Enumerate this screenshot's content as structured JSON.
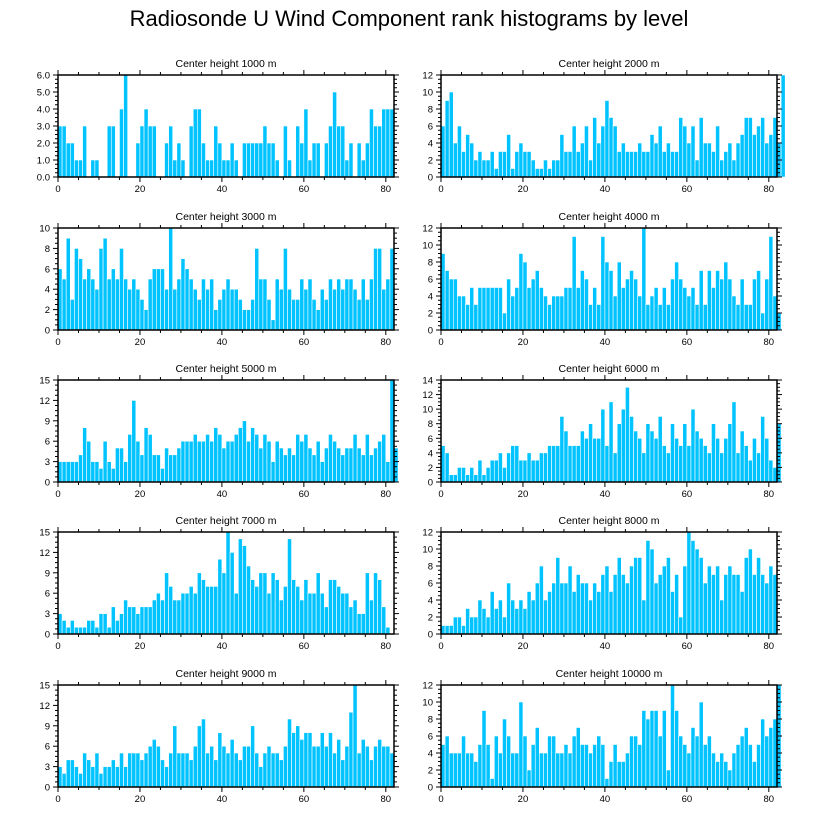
{
  "figure_title": "Radiosonde U Wind Component rank histograms by level",
  "colors": {
    "bar_fill": "#00c3ff",
    "bar_stroke": "#ffffff",
    "axis": "#000000"
  },
  "chart_data": [
    {
      "type": "bar",
      "title": "Center height 1000 m",
      "xlim": [
        0,
        82
      ],
      "xticks": [
        0,
        20,
        40,
        60,
        80
      ],
      "ylim": [
        0,
        6
      ],
      "yticks": [
        "0.0",
        "1.0",
        "2.0",
        "3.0",
        "4.0",
        "5.0",
        "6.0"
      ],
      "ytick_values": [
        0,
        1,
        2,
        3,
        4,
        5,
        6
      ],
      "values": [
        3,
        3,
        2,
        2,
        1,
        1,
        3,
        0,
        1,
        1,
        0,
        0,
        3,
        3,
        0,
        4,
        6,
        0,
        0,
        2,
        3,
        4,
        3,
        3,
        0,
        0,
        2,
        3,
        1,
        2,
        1,
        0,
        3,
        4,
        4,
        2,
        1,
        1,
        3,
        2,
        1,
        1,
        2,
        1,
        0,
        2,
        2,
        2,
        2,
        2,
        3,
        2,
        2,
        1,
        0,
        3,
        1,
        0,
        3,
        2,
        4,
        1,
        2,
        2,
        0,
        2,
        3,
        5,
        3,
        3,
        1,
        2,
        0,
        2,
        1,
        2,
        4,
        3,
        3,
        4,
        4,
        4
      ]
    },
    {
      "type": "bar",
      "title": "Center height 2000 m",
      "xlim": [
        0,
        82
      ],
      "xticks": [
        0,
        20,
        40,
        60,
        80
      ],
      "ylim": [
        0,
        12
      ],
      "yticks": [
        "0",
        "2",
        "4",
        "6",
        "8",
        "10",
        "12"
      ],
      "ytick_values": [
        0,
        2,
        4,
        6,
        8,
        10,
        12
      ],
      "values": [
        6,
        9,
        10,
        4,
        6,
        3,
        5,
        4,
        2,
        3,
        2,
        2,
        3,
        1,
        3,
        3,
        5,
        1,
        3,
        4,
        3,
        3,
        2,
        1,
        1,
        2,
        1,
        2,
        2,
        5,
        3,
        3,
        6,
        3,
        4,
        6,
        2,
        7,
        4,
        6,
        9,
        7,
        6,
        3,
        4,
        3,
        3,
        3,
        4,
        3,
        3,
        5,
        4,
        6,
        3,
        4,
        3,
        3,
        7,
        6,
        4,
        6,
        2,
        7,
        4,
        4,
        3,
        6,
        2,
        3,
        4,
        2,
        4,
        5,
        7,
        7,
        5,
        6,
        7,
        4,
        5,
        7,
        4,
        12
      ]
    },
    {
      "type": "bar",
      "title": "Center height 3000 m",
      "xlim": [
        0,
        82
      ],
      "xticks": [
        0,
        20,
        40,
        60,
        80
      ],
      "ylim": [
        0,
        10
      ],
      "yticks": [
        "0",
        "2",
        "4",
        "6",
        "8",
        "10"
      ],
      "ytick_values": [
        0,
        2,
        4,
        6,
        8,
        10
      ],
      "values": [
        6,
        5,
        9,
        3,
        8,
        7,
        5,
        6,
        5,
        4,
        8,
        9,
        5,
        6,
        5,
        8,
        5,
        4,
        5,
        4,
        3,
        2,
        5,
        6,
        6,
        6,
        4,
        10,
        4,
        5,
        7,
        6,
        5,
        4,
        3,
        5,
        4,
        5,
        2,
        3,
        4,
        5,
        4,
        4,
        3,
        2,
        2,
        3,
        8,
        5,
        5,
        3,
        1,
        5,
        4,
        8,
        4,
        3,
        3,
        5,
        4,
        5,
        3,
        2,
        4,
        3,
        5,
        4,
        5,
        4,
        5,
        5,
        4,
        3,
        5,
        3,
        5,
        8,
        8,
        4,
        5,
        8
      ]
    },
    {
      "type": "bar",
      "title": "Center height 4000 m",
      "xlim": [
        0,
        82
      ],
      "xticks": [
        0,
        20,
        40,
        60,
        80
      ],
      "ylim": [
        0,
        12
      ],
      "yticks": [
        "0",
        "2",
        "4",
        "6",
        "8",
        "10",
        "12"
      ],
      "ytick_values": [
        0,
        2,
        4,
        6,
        8,
        10,
        12
      ],
      "values": [
        9,
        7,
        6,
        6,
        4,
        4,
        3,
        5,
        3,
        5,
        5,
        5,
        5,
        5,
        5,
        2,
        6,
        4,
        5,
        9,
        8,
        5,
        6,
        7,
        5,
        4,
        3,
        4,
        4,
        4,
        5,
        5,
        11,
        5,
        7,
        6,
        3,
        5,
        3,
        11,
        8,
        7,
        4,
        8,
        5,
        6,
        7,
        6,
        4,
        12,
        3,
        4,
        5,
        3,
        5,
        3,
        6,
        8,
        6,
        5,
        4,
        5,
        3,
        7,
        3,
        7,
        5,
        7,
        6,
        8,
        6,
        4,
        3,
        6,
        3,
        3,
        6,
        7,
        2,
        6,
        11,
        4,
        2
      ]
    },
    {
      "type": "bar",
      "title": "Center height 5000 m",
      "xlim": [
        0,
        82
      ],
      "xticks": [
        0,
        20,
        40,
        60,
        80
      ],
      "ylim": [
        0,
        15
      ],
      "yticks": [
        "0",
        "3",
        "6",
        "9",
        "12",
        "15"
      ],
      "ytick_values": [
        0,
        3,
        6,
        9,
        12,
        15
      ],
      "values": [
        3,
        3,
        3,
        3,
        3,
        4,
        8,
        6,
        3,
        3,
        2,
        6,
        3,
        2,
        5,
        5,
        3,
        7,
        12,
        6,
        4,
        8,
        7,
        4,
        4,
        2,
        5,
        4,
        4,
        5,
        6,
        6,
        6,
        7,
        6,
        6,
        7,
        6,
        8,
        7,
        5,
        6,
        6,
        7,
        8,
        9,
        6,
        8,
        7,
        5,
        7,
        6,
        3,
        6,
        5,
        4,
        5,
        4,
        7,
        6,
        7,
        5,
        4,
        6,
        3,
        5,
        7,
        6,
        5,
        4,
        5,
        5,
        7,
        5,
        4,
        7,
        4,
        5,
        6,
        7,
        3,
        15,
        5
      ]
    },
    {
      "type": "bar",
      "title": "Center height 6000 m",
      "xlim": [
        0,
        82
      ],
      "xticks": [
        0,
        20,
        40,
        60,
        80
      ],
      "ylim": [
        0,
        14
      ],
      "yticks": [
        "0",
        "2",
        "4",
        "6",
        "8",
        "10",
        "12",
        "14"
      ],
      "ytick_values": [
        0,
        2,
        4,
        6,
        8,
        10,
        12,
        14
      ],
      "values": [
        5,
        4,
        1,
        1,
        2,
        2,
        1,
        2,
        1,
        3,
        1,
        2,
        3,
        3,
        4,
        2,
        4,
        5,
        5,
        3,
        3,
        4,
        3,
        3,
        4,
        4,
        5,
        5,
        5,
        9,
        7,
        5,
        5,
        5,
        7,
        6,
        8,
        6,
        6,
        10,
        5,
        11,
        4,
        8,
        10,
        13,
        9,
        7,
        6,
        4,
        8,
        7,
        6,
        9,
        5,
        4,
        8,
        6,
        5,
        8,
        5,
        10,
        7,
        6,
        5,
        4,
        8,
        6,
        4,
        6,
        8,
        11,
        4,
        7,
        5,
        3,
        6,
        4,
        9,
        6,
        3,
        2,
        8
      ]
    },
    {
      "type": "bar",
      "title": "Center height 7000 m",
      "xlim": [
        0,
        82
      ],
      "xticks": [
        0,
        20,
        40,
        60,
        80
      ],
      "ylim": [
        0,
        15
      ],
      "yticks": [
        "0",
        "3",
        "6",
        "9",
        "12",
        "15"
      ],
      "ytick_values": [
        0,
        3,
        6,
        9,
        12,
        15
      ],
      "values": [
        3,
        2,
        1,
        2,
        1,
        1,
        1,
        2,
        2,
        1,
        3,
        3,
        1,
        4,
        2,
        3,
        5,
        4,
        4,
        3,
        4,
        4,
        4,
        5,
        6,
        5,
        9,
        7,
        5,
        5,
        6,
        6,
        7,
        6,
        9,
        8,
        7,
        7,
        7,
        11,
        9,
        15,
        12,
        6,
        14,
        13,
        10,
        8,
        7,
        9,
        9,
        6,
        9,
        8,
        5,
        7,
        14,
        8,
        7,
        5,
        8,
        6,
        6,
        9,
        6,
        4,
        8,
        8,
        7,
        6,
        6,
        4,
        5,
        3,
        3,
        9,
        5,
        9,
        8,
        4,
        1
      ]
    },
    {
      "type": "bar",
      "title": "Center height 8000 m",
      "xlim": [
        0,
        82
      ],
      "xticks": [
        0,
        20,
        40,
        60,
        80
      ],
      "ylim": [
        0,
        12
      ],
      "yticks": [
        "0",
        "2",
        "4",
        "6",
        "8",
        "10",
        "12"
      ],
      "ytick_values": [
        0,
        2,
        4,
        6,
        8,
        10,
        12
      ],
      "values": [
        1,
        1,
        1,
        2,
        2,
        1,
        3,
        2,
        2,
        4,
        3,
        2,
        5,
        3,
        4,
        2,
        6,
        4,
        3,
        4,
        3,
        5,
        4,
        6,
        8,
        4,
        5,
        6,
        9,
        6,
        6,
        8,
        5,
        7,
        6,
        6,
        4,
        6,
        5,
        7,
        8,
        5,
        7,
        9,
        7,
        6,
        8,
        9,
        9,
        4,
        11,
        10,
        6,
        7,
        8,
        9,
        5,
        7,
        2,
        8,
        12,
        11,
        10,
        9,
        6,
        8,
        7,
        8,
        4,
        7,
        8,
        7,
        7,
        5,
        9,
        10,
        7,
        9,
        7,
        6,
        8,
        7
      ]
    },
    {
      "type": "bar",
      "title": "Center height 9000 m",
      "xlim": [
        0,
        82
      ],
      "xticks": [
        0,
        20,
        40,
        60,
        80
      ],
      "ylim": [
        0,
        15
      ],
      "yticks": [
        "0",
        "3",
        "6",
        "9",
        "12",
        "15"
      ],
      "ytick_values": [
        0,
        3,
        6,
        9,
        12,
        15
      ],
      "values": [
        3,
        2,
        4,
        4,
        3,
        2,
        5,
        4,
        3,
        5,
        2,
        3,
        3,
        4,
        3,
        5,
        3,
        5,
        5,
        5,
        4,
        5,
        6,
        7,
        6,
        4,
        3,
        5,
        9,
        5,
        5,
        5,
        4,
        6,
        9,
        10,
        5,
        6,
        4,
        8,
        6,
        5,
        7,
        5,
        4,
        6,
        6,
        9,
        5,
        3,
        5,
        6,
        5,
        5,
        4,
        6,
        10,
        8,
        9,
        7,
        8,
        8,
        6,
        6,
        8,
        6,
        8,
        5,
        7,
        4,
        6,
        11,
        15,
        5,
        7,
        6,
        4,
        6,
        7,
        6,
        6,
        5
      ]
    },
    {
      "type": "bar",
      "title": "Center height 10000 m",
      "xlim": [
        0,
        82
      ],
      "xticks": [
        0,
        20,
        40,
        60,
        80
      ],
      "ylim": [
        0,
        12
      ],
      "yticks": [
        "0",
        "2",
        "4",
        "6",
        "8",
        "10",
        "12"
      ],
      "ytick_values": [
        0,
        2,
        4,
        6,
        8,
        10,
        12
      ],
      "values": [
        5,
        6,
        4,
        4,
        4,
        6,
        4,
        4,
        3,
        5,
        9,
        5,
        1,
        6,
        4,
        8,
        6,
        4,
        4,
        10,
        6,
        2,
        5,
        7,
        4,
        4,
        6,
        6,
        4,
        4,
        5,
        4,
        6,
        7,
        5,
        5,
        4,
        5,
        6,
        5,
        1,
        3,
        5,
        3,
        3,
        4,
        6,
        6,
        5,
        9,
        8,
        9,
        9,
        6,
        9,
        2,
        12,
        9,
        6,
        5,
        4,
        7,
        6,
        10,
        5,
        6,
        4,
        3,
        4,
        3,
        2,
        4,
        5,
        6,
        7,
        5,
        3,
        5,
        8,
        6,
        7,
        8,
        12
      ]
    }
  ]
}
